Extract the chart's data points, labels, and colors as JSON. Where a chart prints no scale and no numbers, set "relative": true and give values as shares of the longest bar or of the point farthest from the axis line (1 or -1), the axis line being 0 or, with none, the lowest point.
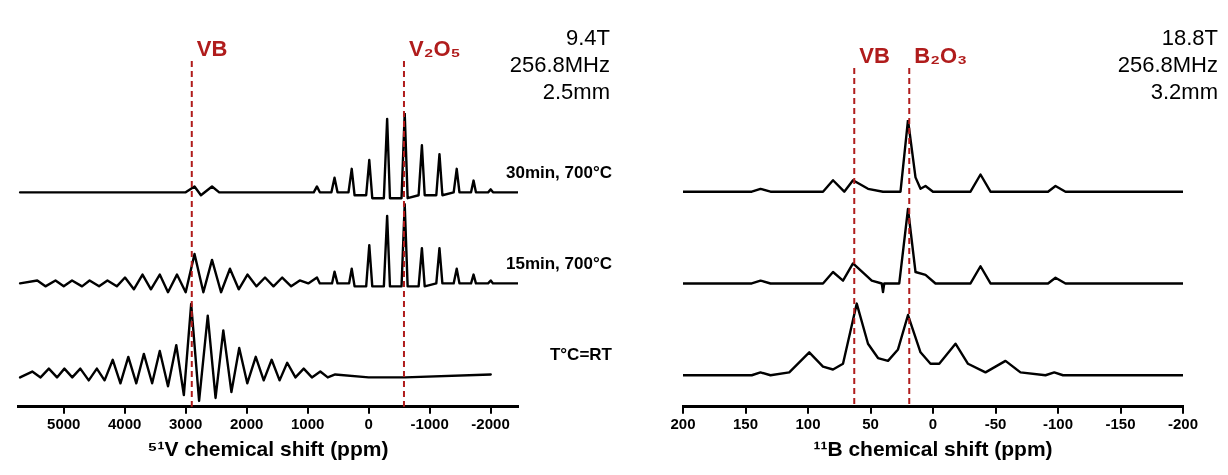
{
  "chart_data": [
    {
      "type": "line",
      "relative": true,
      "xlabel": "⁵¹V chemical shift (ppm)",
      "xlim": [
        5750,
        -2450
      ],
      "xticks": [
        5000,
        4000,
        3000,
        2000,
        1000,
        0,
        -1000,
        -2000
      ],
      "legend": false,
      "marker": "none",
      "line_style": "solid",
      "annotations": [
        "9.4T",
        "256.8MHz",
        "2.5mm"
      ],
      "ref_lines": [
        {
          "axis": "x",
          "value": 2900,
          "label": "VB",
          "color": "#b01c1c",
          "line_style": "dashed"
        },
        {
          "axis": "x",
          "value": -580,
          "label": "V₂O₅",
          "color": "#b01c1c",
          "line_style": "dashed"
        }
      ],
      "series": [
        {
          "name": "30min, 700°C",
          "color": "#000000",
          "x": [
            5716,
            3000,
            2855,
            2750,
            2568,
            2450,
            1200,
            900,
            847,
            800,
            610,
            559,
            510,
            330,
            277,
            230,
            40,
            -11,
            -60,
            -250,
            -304,
            -350,
            -540,
            -592,
            -640,
            -820,
            -874,
            -920,
            -1110,
            -1162,
            -1210,
            -1395,
            -1445,
            -1490,
            -1680,
            -1721,
            -1760,
            -1960,
            -2003,
            -2040,
            -2438
          ],
          "values": [
            0.73,
            0.73,
            0.75,
            0.72,
            0.75,
            0.73,
            0.73,
            0.73,
            0.75,
            0.73,
            0.73,
            0.78,
            0.73,
            0.73,
            0.81,
            0.72,
            0.72,
            0.84,
            0.71,
            0.71,
            0.98,
            0.71,
            0.71,
            1,
            0.71,
            0.72,
            0.89,
            0.72,
            0.72,
            0.86,
            0.72,
            0.73,
            0.81,
            0.73,
            0.73,
            0.77,
            0.73,
            0.73,
            0.74,
            0.73,
            0.73
          ]
        },
        {
          "name": "15min, 700°C",
          "color": "#000000",
          "x": [
            5716,
            5434,
            5300,
            5135,
            5000,
            4864,
            4700,
            4576,
            4420,
            4283,
            4130,
            3995,
            3850,
            3708,
            3570,
            3425,
            3290,
            3143,
            3000,
            2855,
            2710,
            2568,
            2420,
            2274,
            2130,
            1987,
            1840,
            1699,
            1560,
            1417,
            1270,
            1129,
            990,
            847,
            800,
            600,
            559,
            510,
            320,
            277,
            230,
            40,
            -11,
            -60,
            -250,
            -304,
            -350,
            -540,
            -592,
            -640,
            -820,
            -874,
            -920,
            -1110,
            -1162,
            -1210,
            -1395,
            -1445,
            -1490,
            -1680,
            -1721,
            -1760,
            -1960,
            -2003,
            -2040,
            -2438
          ],
          "values": [
            0.42,
            0.43,
            0.41,
            0.43,
            0.41,
            0.43,
            0.41,
            0.43,
            0.41,
            0.43,
            0.41,
            0.44,
            0.4,
            0.45,
            0.4,
            0.45,
            0.39,
            0.45,
            0.39,
            0.52,
            0.39,
            0.5,
            0.39,
            0.47,
            0.4,
            0.45,
            0.41,
            0.44,
            0.41,
            0.44,
            0.41,
            0.43,
            0.42,
            0.44,
            0.42,
            0.42,
            0.46,
            0.42,
            0.42,
            0.47,
            0.41,
            0.41,
            0.55,
            0.41,
            0.41,
            0.65,
            0.41,
            0.41,
            0.69,
            0.41,
            0.41,
            0.54,
            0.41,
            0.42,
            0.54,
            0.42,
            0.42,
            0.47,
            0.42,
            0.42,
            0.45,
            0.42,
            0.42,
            0.43,
            0.42,
            0.42
          ]
        },
        {
          "name": "T°C=RT",
          "color": "#000000",
          "x": [
            5716,
            5516,
            5380,
            5244,
            5110,
            4989,
            4860,
            4728,
            4590,
            4457,
            4330,
            4196,
            4070,
            3941,
            3810,
            3686,
            3550,
            3425,
            3290,
            3154,
            3030,
            2910,
            2780,
            2638,
            2510,
            2383,
            2250,
            2122,
            1990,
            1851,
            1720,
            1590,
            1460,
            1335,
            1200,
            1064,
            930,
            792,
            670,
            548,
            0,
            -600,
            -2003
          ],
          "values": [
            0.1,
            0.12,
            0.1,
            0.13,
            0.1,
            0.13,
            0.1,
            0.13,
            0.09,
            0.13,
            0.09,
            0.16,
            0.08,
            0.17,
            0.08,
            0.18,
            0.08,
            0.19,
            0.07,
            0.21,
            0.04,
            0.35,
            0.02,
            0.31,
            0.03,
            0.26,
            0.05,
            0.2,
            0.08,
            0.17,
            0.09,
            0.16,
            0.09,
            0.15,
            0.1,
            0.13,
            0.1,
            0.12,
            0.1,
            0.11,
            0.1,
            0.1,
            0.11
          ]
        }
      ]
    },
    {
      "type": "line",
      "relative": true,
      "xlabel": "¹¹B chemical shift (ppm)",
      "xlim": [
        200,
        -200
      ],
      "xticks": [
        200,
        150,
        100,
        50,
        0,
        -50,
        -100,
        -150,
        -200
      ],
      "legend": false,
      "marker": "none",
      "line_style": "solid",
      "annotations": [
        "18.8T",
        "256.8MHz",
        "3.2mm"
      ],
      "ref_lines": [
        {
          "axis": "x",
          "value": 63,
          "label": "VB",
          "color": "#b01c1c",
          "line_style": "dashed"
        },
        {
          "axis": "x",
          "value": 19,
          "label": "B₂O₃",
          "color": "#b01c1c",
          "line_style": "dashed"
        }
      ],
      "series": [
        {
          "color": "#000000",
          "x": [
            200,
            145,
            138,
            130,
            88,
            80,
            71,
            64,
            52,
            40,
            26,
            20,
            14,
            10,
            6,
            0,
            -30,
            -38,
            -46,
            -92,
            -98,
            -106,
            -200
          ],
          "values": [
            0.75,
            0.75,
            0.76,
            0.75,
            0.75,
            0.79,
            0.75,
            0.79,
            0.76,
            0.75,
            0.75,
            1,
            0.8,
            0.76,
            0.77,
            0.75,
            0.75,
            0.81,
            0.75,
            0.75,
            0.77,
            0.75,
            0.75
          ]
        },
        {
          "color": "#000000",
          "x": [
            200,
            145,
            138,
            130,
            88,
            80,
            72,
            64,
            49,
            41,
            40,
            39,
            27,
            20,
            14,
            6,
            -2,
            -30,
            -38,
            -46,
            -92,
            -98,
            -106,
            -200
          ],
          "values": [
            0.43,
            0.43,
            0.44,
            0.43,
            0.43,
            0.47,
            0.44,
            0.5,
            0.44,
            0.43,
            0.4,
            0.43,
            0.43,
            0.69,
            0.47,
            0.46,
            0.43,
            0.43,
            0.49,
            0.43,
            0.43,
            0.45,
            0.43,
            0.43
          ]
        },
        {
          "color": "#000000",
          "x": [
            200,
            145,
            138,
            130,
            115,
            99,
            88,
            80,
            72,
            61,
            52,
            44,
            36,
            28,
            20,
            10,
            2,
            -5,
            -18,
            -28,
            -42,
            -58,
            -70,
            -90,
            -97,
            -104,
            -200
          ],
          "values": [
            0.11,
            0.11,
            0.12,
            0.11,
            0.12,
            0.19,
            0.14,
            0.13,
            0.15,
            0.36,
            0.22,
            0.17,
            0.16,
            0.2,
            0.32,
            0.19,
            0.15,
            0.15,
            0.22,
            0.15,
            0.12,
            0.16,
            0.12,
            0.11,
            0.12,
            0.11,
            0.11
          ]
        }
      ]
    }
  ]
}
